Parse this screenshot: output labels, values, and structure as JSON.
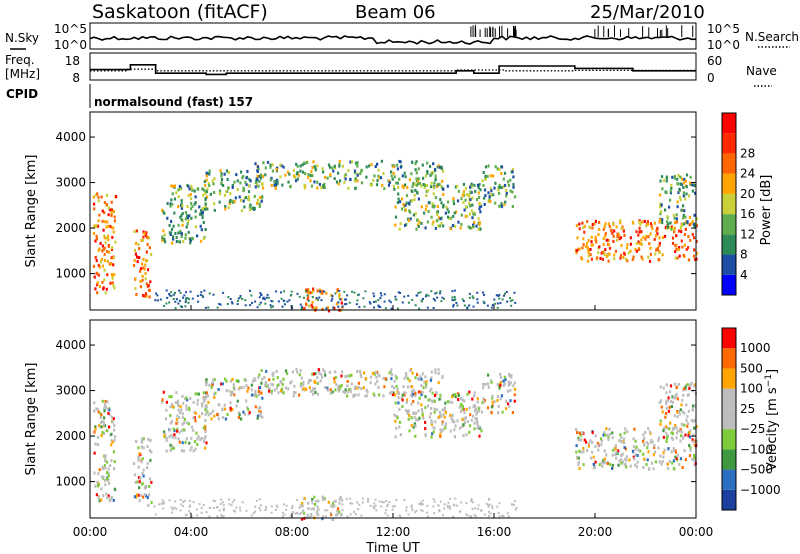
{
  "header": {
    "station": "Saskatoon (fitACF)",
    "beam": "Beam 06",
    "date": "25/Mar/2010"
  },
  "top_panel": {
    "nsky_label": "N.Sky",
    "nsearch_label": "N.Search",
    "left_ticks": [
      "10^5",
      "10^0"
    ],
    "right_ticks": [
      "10^5",
      "10^0"
    ]
  },
  "freq_panel": {
    "label_line1": "Freq.",
    "label_line2": "[MHz]",
    "left_ticks": [
      "18",
      "8"
    ],
    "right_ticks": [
      "60",
      "0"
    ],
    "nave_label": "Nave",
    "cpid_label": "CPID",
    "cpid_value": "normalsound (fast) 157"
  },
  "colors": {
    "power_scale": [
      "#0000ff",
      "#1c4ea3",
      "#2e8b57",
      "#5fae4d",
      "#c8d13a",
      "#ffa500",
      "#ff6600",
      "#ff2a00",
      "#ff0000"
    ],
    "velocity_scale": [
      "#1b3f9e",
      "#2c6fc0",
      "#3f9a3f",
      "#7fcc3a",
      "#bdbdbd",
      "#bdbdbd",
      "#ffa500",
      "#ff6a00",
      "#ff0000"
    ]
  },
  "chart_data": [
    {
      "type": "heatmap",
      "name": "power",
      "ylabel": "Slant Range [km]",
      "yticks": [
        "1000",
        "2000",
        "3000",
        "4000"
      ],
      "ylim": [
        200,
        4550
      ],
      "xlim": [
        0,
        24
      ],
      "colorbar": {
        "label": "Power [dB]",
        "ticks": [
          "4",
          "8",
          "12",
          "16",
          "20",
          "24",
          "28"
        ]
      },
      "echo_regions": [
        {
          "t0": 0.1,
          "t1": 1.0,
          "r0": 600,
          "r1": 2800,
          "level": "high"
        },
        {
          "t0": 1.7,
          "t1": 2.4,
          "r0": 500,
          "r1": 2000,
          "level": "high"
        },
        {
          "t0": 2.8,
          "t1": 4.6,
          "r0": 1700,
          "r1": 3000,
          "level": "mid"
        },
        {
          "t0": 4.5,
          "t1": 6.8,
          "r0": 2400,
          "r1": 3300,
          "level": "mid"
        },
        {
          "t0": 6.5,
          "t1": 14.0,
          "r0": 2900,
          "r1": 3500,
          "level": "mid"
        },
        {
          "t0": 12.0,
          "t1": 15.5,
          "r0": 2000,
          "r1": 3000,
          "level": "mid"
        },
        {
          "t0": 15.5,
          "t1": 16.8,
          "r0": 2500,
          "r1": 3400,
          "level": "mid"
        },
        {
          "t0": 8.3,
          "t1": 10.0,
          "r0": 200,
          "r1": 700,
          "level": "high"
        },
        {
          "t0": 19.2,
          "t1": 24.0,
          "r0": 1300,
          "r1": 2200,
          "level": "high"
        },
        {
          "t0": 22.5,
          "t1": 24.0,
          "r0": 2000,
          "r1": 3200,
          "level": "mid"
        }
      ]
    },
    {
      "type": "heatmap",
      "name": "velocity",
      "ylabel": "Slant Range [km]",
      "yticks": [
        "1000",
        "2000",
        "3000",
        "4000"
      ],
      "ylim": [
        200,
        4550
      ],
      "xlim": [
        0,
        24
      ],
      "colorbar": {
        "ticks": [
          "1000",
          "500",
          "100",
          "25",
          "−25",
          "−100",
          "−500",
          "−1000"
        ]
      },
      "xticks": [
        "00:00",
        "04:00",
        "08:00",
        "12:00",
        "16:00",
        "20:00",
        "00:00"
      ],
      "xlabel": "Time UT"
    }
  ]
}
